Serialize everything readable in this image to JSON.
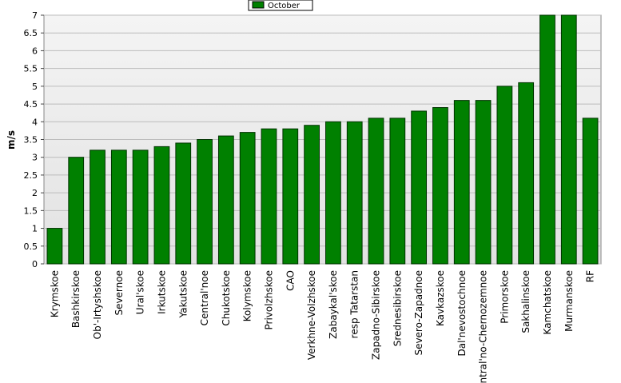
{
  "chart_data": {
    "type": "bar",
    "y_label": "m/s",
    "categories": [
      "Krymskoe",
      "Bashkirskoe",
      "Ob'-Irtyshskoe",
      "Severnoe",
      "Ural'skoe",
      "Irkutskoe",
      "Yakutskoe",
      "Central'noe",
      "Chukotskoe",
      "Kolymskoe",
      "Privolzhskoe",
      "CAO",
      "Verkhne-Volzhskoe",
      "Zabaykal'skoe",
      "resp Tatarstan",
      "Zapadno-Sibirskoe",
      "Srednesibirskoe",
      "Severo-Zapadnoe",
      "Kavkazskoe",
      "Dal'nevostochnoe",
      "Central'no-Chernozemnoe",
      "Primorskoe",
      "Sakhalinskoe",
      "Kamchatskoe",
      "Murmanskoe",
      "RF"
    ],
    "series": [
      {
        "name": "October",
        "color": "#008000",
        "values": [
          1,
          3,
          3.2,
          3.2,
          3.2,
          3.3,
          3.4,
          3.5,
          3.6,
          3.7,
          3.8,
          3.8,
          3.9,
          4,
          4,
          4.1,
          4.1,
          4.3,
          4.4,
          4.6,
          4.6,
          5,
          5.1,
          7,
          7,
          4.1
        ]
      }
    ],
    "ylim": [
      0,
      7
    ],
    "yticks": [
      0,
      0.5,
      1,
      1.5,
      2,
      2.5,
      3,
      3.5,
      4,
      4.5,
      5,
      5.5,
      6,
      6.5,
      7
    ],
    "grid": true,
    "legend": "top"
  }
}
